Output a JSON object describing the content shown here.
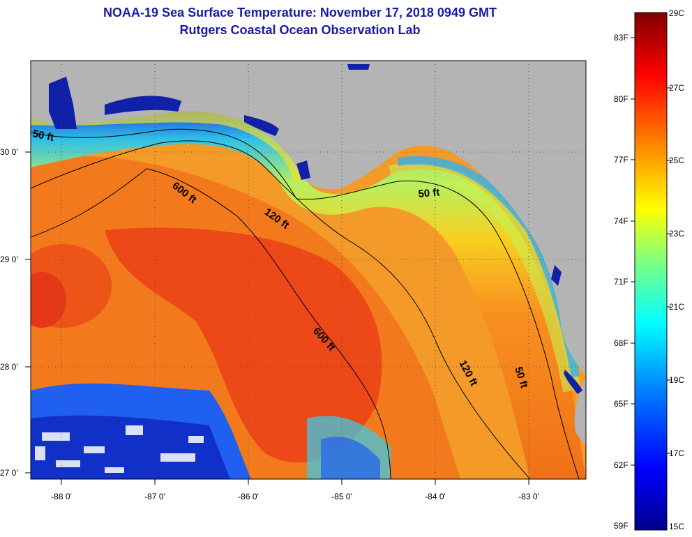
{
  "title": {
    "line1": "NOAA-19 Sea Surface Temperature:  November 17, 2018 0949 GMT",
    "line2": "Rutgers Coastal Ocean Observation Lab"
  },
  "map": {
    "lon_ticks": [
      "-88 0'",
      "-87 0'",
      "-86 0'",
      "-85 0'",
      "-84 0'",
      "-83 0'"
    ],
    "lat_ticks": [
      "30 0'",
      "29 0'",
      "28 0'",
      "27 0'"
    ],
    "contour_labels": [
      {
        "text": "50 ft",
        "id": "contour-50ft-west"
      },
      {
        "text": "600 ft",
        "id": "contour-600ft-north"
      },
      {
        "text": "120 ft",
        "id": "contour-120ft-north"
      },
      {
        "text": "50 ft",
        "id": "contour-50ft-north"
      },
      {
        "text": "600 ft",
        "id": "contour-600ft-south"
      },
      {
        "text": "120 ft",
        "id": "contour-120ft-south"
      },
      {
        "text": "50 ft",
        "id": "contour-50ft-south"
      }
    ],
    "colors": {
      "land": "#b4b4b4",
      "ocean_warm": "#f04010",
      "contour": "#000000"
    }
  },
  "colorbar": {
    "fahrenheit": [
      "83F",
      "80F",
      "77F",
      "74F",
      "71F",
      "68F",
      "65F",
      "62F",
      "59F"
    ],
    "celsius": [
      "29C",
      "27C",
      "25C",
      "23C",
      "21C",
      "19C",
      "17C",
      "15C"
    ]
  }
}
